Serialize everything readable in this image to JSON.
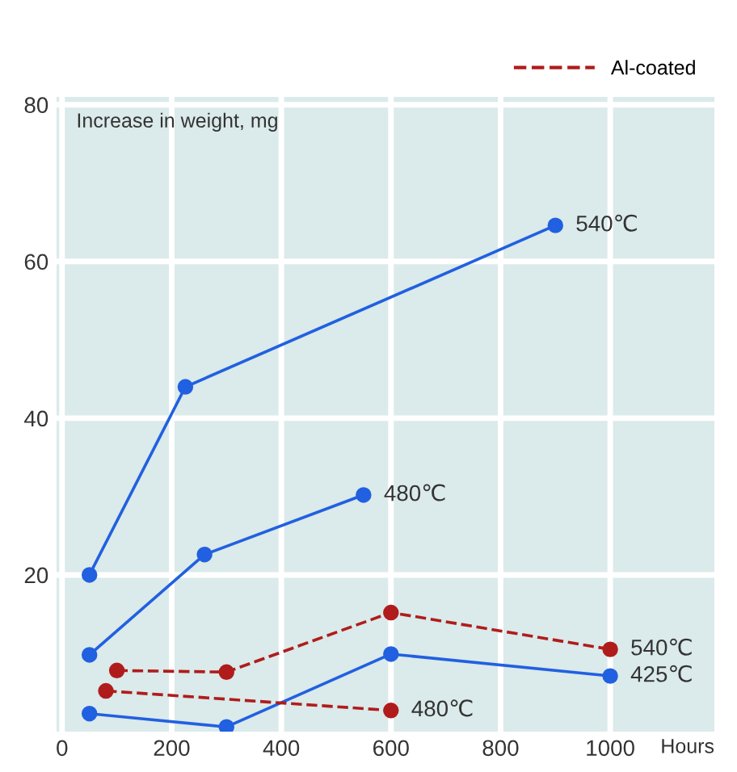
{
  "chart_data": {
    "type": "line",
    "xlabel": "Hours",
    "ylabel": "Increase in weight, mg",
    "xlim": [
      -10,
      1190
    ],
    "ylim": [
      0,
      81
    ],
    "xticks": [
      0,
      200,
      400,
      600,
      800,
      1000
    ],
    "yticks": [
      20,
      40,
      60,
      80
    ],
    "grid": true,
    "legend": "top right",
    "marker": "circle",
    "series": [
      {
        "x": [
          50,
          225,
          900
        ],
        "values": [
          20,
          44,
          64.6
        ],
        "color": "#2160e0",
        "line_style": "solid"
      },
      {
        "x": [
          50,
          260,
          550
        ],
        "values": [
          9.8,
          22.6,
          30.2
        ],
        "color": "#2160e0",
        "line_style": "solid"
      },
      {
        "x": [
          50,
          300,
          600,
          1000
        ],
        "values": [
          2.3,
          0.6,
          9.9,
          7.1
        ],
        "color": "#2160e0",
        "line_style": "solid"
      },
      {
        "name": "Al-coated",
        "x": [
          100,
          300,
          600,
          1000
        ],
        "values": [
          7.8,
          7.6,
          15.2,
          10.5
        ],
        "color": "#b01c1c",
        "line_style": "dashed"
      },
      {
        "x": [
          80,
          600
        ],
        "values": [
          5.2,
          2.7
        ],
        "color": "#b01c1c",
        "line_style": "dashed"
      }
    ],
    "annotations": [
      {
        "text": "540℃",
        "x": 900,
        "y": 64.6
      },
      {
        "text": "480℃",
        "x": 550,
        "y": 30.2
      },
      {
        "text": "540℃",
        "x": 1000,
        "y": 10.5
      },
      {
        "text": "425℃",
        "x": 1000,
        "y": 7.1
      },
      {
        "text": "480℃",
        "x": 600,
        "y": 2.7
      }
    ]
  }
}
